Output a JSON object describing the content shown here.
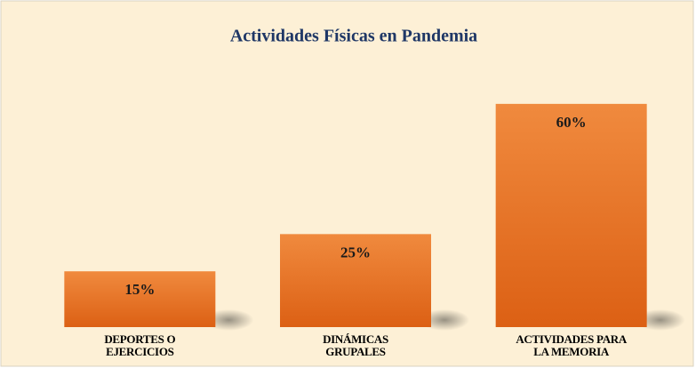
{
  "chart_data": {
    "type": "bar",
    "title": "Actividades  Físicas en Pandemia",
    "categories": [
      "DEPORTES O EJERCICIOS",
      "DINÁMICAS GRUPALES",
      "ACTIVIDADES PARA LA MEMORIA"
    ],
    "values": [
      15,
      25,
      60
    ],
    "value_labels": [
      "15%",
      "25%",
      "60%"
    ],
    "color": "#e8722a",
    "ylim": [
      0,
      70
    ]
  }
}
